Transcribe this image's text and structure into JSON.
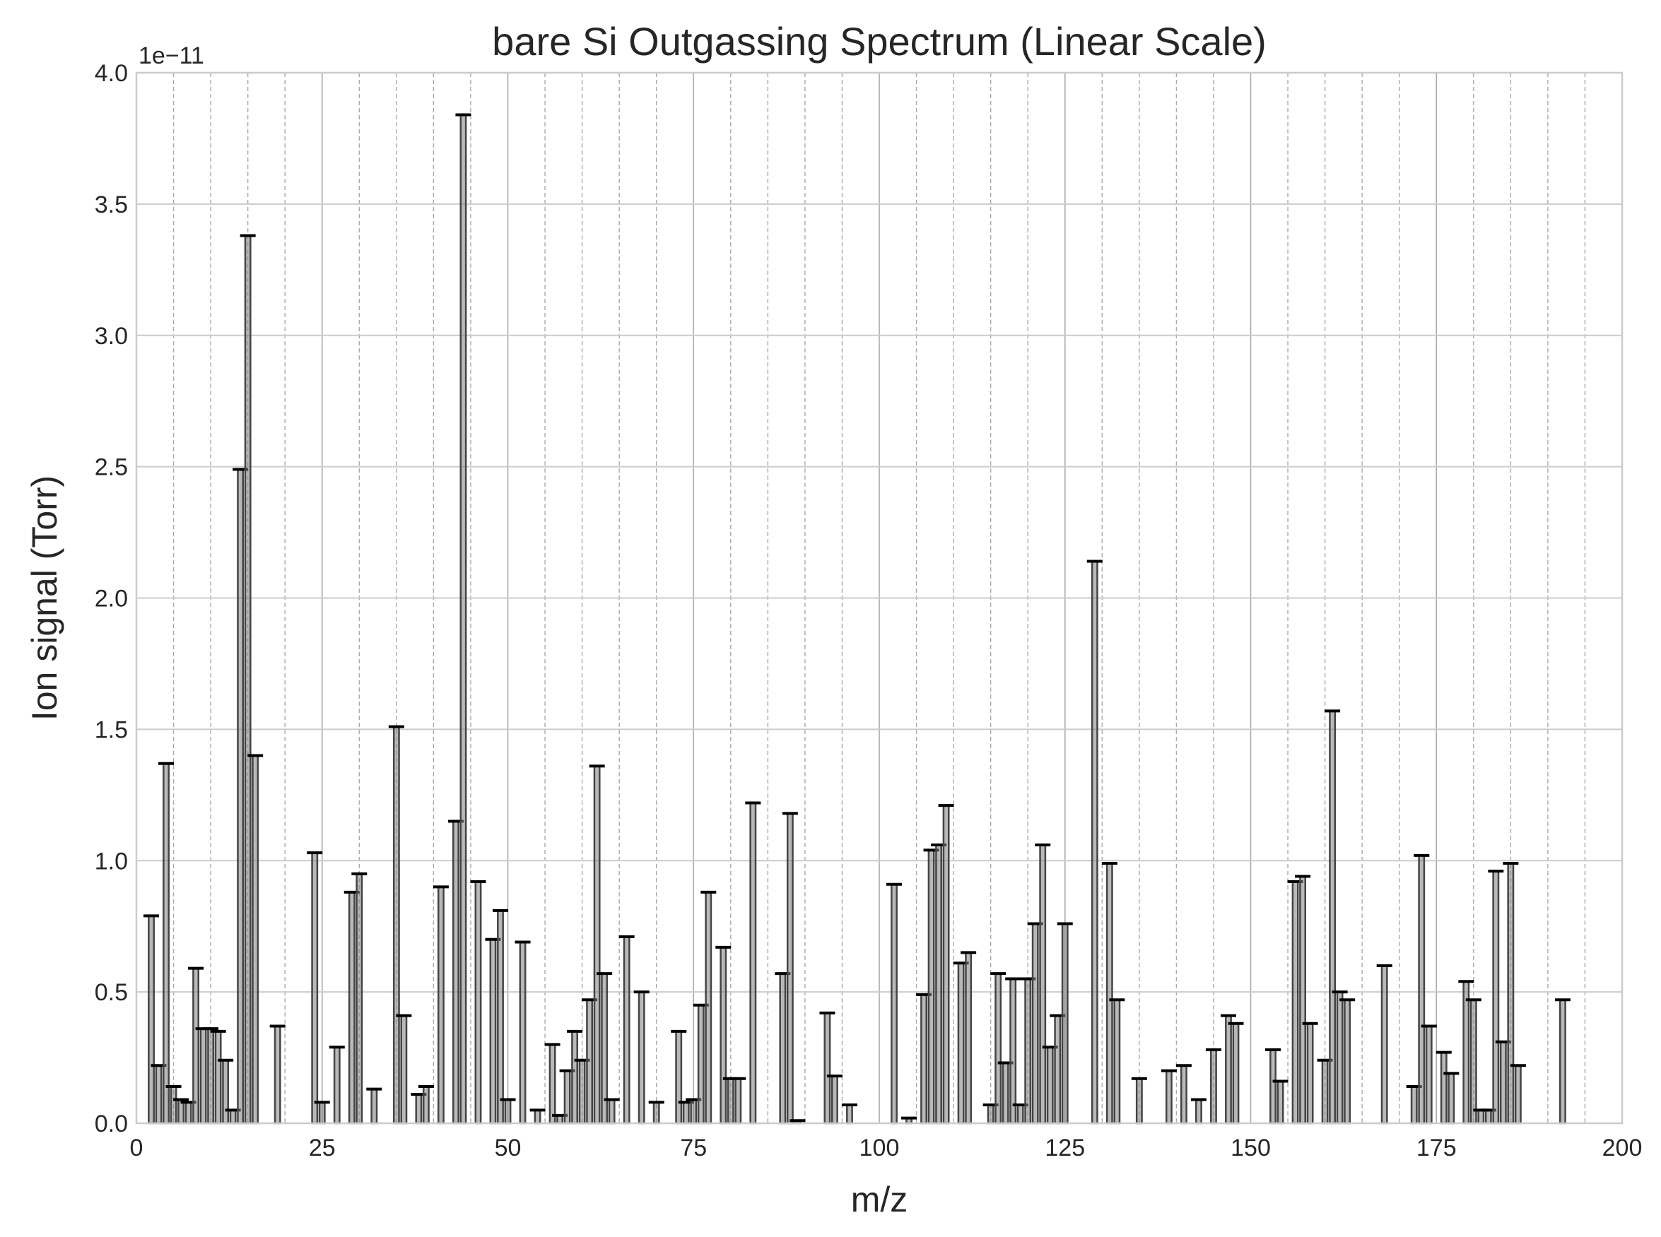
{
  "chart_data": {
    "type": "bar",
    "title": "bare Si Outgassing Spectrum (Linear Scale)",
    "xlabel": "m/z",
    "ylabel": "Ion signal (Torr)",
    "y_offset_label": "1e−11",
    "xlim": [
      0,
      200
    ],
    "ylim": [
      0,
      4.0
    ],
    "y_scale_factor": 1e-11,
    "x_ticks": [
      0,
      25,
      50,
      75,
      100,
      125,
      150,
      175,
      200
    ],
    "x_tick_labels": [
      "0",
      "25",
      "50",
      "75",
      "100",
      "125",
      "150",
      "175",
      "200"
    ],
    "y_ticks": [
      0,
      0.5,
      1.0,
      1.5,
      2.0,
      2.5,
      3.0,
      3.5,
      4.0
    ],
    "y_tick_labels": [
      "0.0",
      "0.5",
      "1.0",
      "1.5",
      "2.0",
      "2.5",
      "3.0",
      "3.5",
      "4.0"
    ],
    "grid": true,
    "bar_color": "#808080",
    "cap_color": "#000000",
    "bars": [
      [
        2,
        0.79
      ],
      [
        3,
        0.22
      ],
      [
        4,
        1.37
      ],
      [
        5,
        0.14
      ],
      [
        6,
        0.09
      ],
      [
        7,
        0.08
      ],
      [
        8,
        0.59
      ],
      [
        9,
        0.36
      ],
      [
        10,
        0.36
      ],
      [
        11,
        0.35
      ],
      [
        12,
        0.24
      ],
      [
        13,
        0.05
      ],
      [
        14,
        2.49
      ],
      [
        15,
        3.38
      ],
      [
        16,
        1.4
      ],
      [
        19,
        0.37
      ],
      [
        24,
        1.03
      ],
      [
        25,
        0.08
      ],
      [
        27,
        0.29
      ],
      [
        29,
        0.88
      ],
      [
        30,
        0.95
      ],
      [
        32,
        0.13
      ],
      [
        35,
        1.51
      ],
      [
        36,
        0.41
      ],
      [
        38,
        0.11
      ],
      [
        39,
        0.14
      ],
      [
        41,
        0.9
      ],
      [
        43,
        1.15
      ],
      [
        44,
        3.84
      ],
      [
        46,
        0.92
      ],
      [
        48,
        0.7
      ],
      [
        49,
        0.81
      ],
      [
        50,
        0.09
      ],
      [
        52,
        0.69
      ],
      [
        54,
        0.05
      ],
      [
        56,
        0.3
      ],
      [
        57,
        0.03
      ],
      [
        58,
        0.2
      ],
      [
        59,
        0.35
      ],
      [
        60,
        0.24
      ],
      [
        61,
        0.47
      ],
      [
        62,
        1.36
      ],
      [
        63,
        0.57
      ],
      [
        64,
        0.09
      ],
      [
        66,
        0.71
      ],
      [
        68,
        0.5
      ],
      [
        70,
        0.08
      ],
      [
        73,
        0.35
      ],
      [
        74,
        0.08
      ],
      [
        75,
        0.09
      ],
      [
        76,
        0.45
      ],
      [
        77,
        0.88
      ],
      [
        79,
        0.67
      ],
      [
        80,
        0.17
      ],
      [
        81,
        0.17
      ],
      [
        83,
        1.22
      ],
      [
        87,
        0.57
      ],
      [
        88,
        1.18
      ],
      [
        89,
        0.01
      ],
      [
        93,
        0.42
      ],
      [
        94,
        0.18
      ],
      [
        96,
        0.07
      ],
      [
        102,
        0.91
      ],
      [
        104,
        0.02
      ],
      [
        106,
        0.49
      ],
      [
        107,
        1.04
      ],
      [
        108,
        1.06
      ],
      [
        109,
        1.21
      ],
      [
        111,
        0.61
      ],
      [
        112,
        0.65
      ],
      [
        115,
        0.07
      ],
      [
        116,
        0.57
      ],
      [
        117,
        0.23
      ],
      [
        118,
        0.55
      ],
      [
        119,
        0.07
      ],
      [
        120,
        0.55
      ],
      [
        121,
        0.76
      ],
      [
        122,
        1.06
      ],
      [
        123,
        0.29
      ],
      [
        124,
        0.41
      ],
      [
        125,
        0.76
      ],
      [
        129,
        2.14
      ],
      [
        131,
        0.99
      ],
      [
        132,
        0.47
      ],
      [
        135,
        0.17
      ],
      [
        139,
        0.2
      ],
      [
        141,
        0.22
      ],
      [
        143,
        0.09
      ],
      [
        145,
        0.28
      ],
      [
        147,
        0.41
      ],
      [
        148,
        0.38
      ],
      [
        153,
        0.28
      ],
      [
        154,
        0.16
      ],
      [
        156,
        0.92
      ],
      [
        157,
        0.94
      ],
      [
        158,
        0.38
      ],
      [
        160,
        0.24
      ],
      [
        161,
        1.57
      ],
      [
        162,
        0.5
      ],
      [
        163,
        0.47
      ],
      [
        168,
        0.6
      ],
      [
        172,
        0.14
      ],
      [
        173,
        1.02
      ],
      [
        174,
        0.37
      ],
      [
        176,
        0.27
      ],
      [
        177,
        0.19
      ],
      [
        179,
        0.54
      ],
      [
        180,
        0.47
      ],
      [
        181,
        0.05
      ],
      [
        182,
        0.05
      ],
      [
        183,
        0.96
      ],
      [
        184,
        0.31
      ],
      [
        185,
        0.99
      ],
      [
        186,
        0.22
      ],
      [
        192,
        0.47
      ]
    ]
  }
}
